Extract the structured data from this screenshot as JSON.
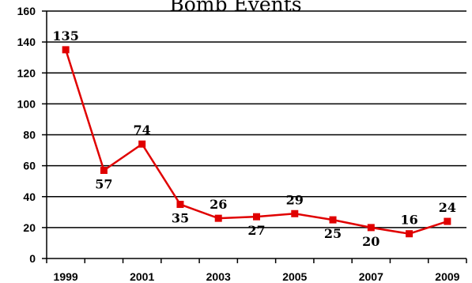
{
  "chart_data": {
    "type": "line",
    "title": "Bomb Events",
    "xlabel": "",
    "ylabel": "",
    "x": [
      1999,
      2000,
      2001,
      2002,
      2003,
      2004,
      2005,
      2006,
      2007,
      2008,
      2009
    ],
    "x_tick_labels": [
      "1999",
      "2001",
      "2003",
      "2005",
      "2007",
      "2009"
    ],
    "y_tick_labels": [
      "0",
      "20",
      "40",
      "60",
      "80",
      "100",
      "120",
      "140",
      "160"
    ],
    "ylim": [
      0,
      160
    ],
    "y_step": 20,
    "grid": "horizontal",
    "legend": "none",
    "series": [
      {
        "values": [
          135,
          57,
          74,
          35,
          26,
          27,
          29,
          25,
          20,
          16,
          24
        ],
        "labels": [
          "135",
          "57",
          "74",
          "35",
          "26",
          "27",
          "29",
          "25",
          "20",
          "16",
          "24"
        ],
        "label_positions": [
          "above",
          "below",
          "above",
          "below",
          "above",
          "below",
          "above",
          "below",
          "below",
          "above",
          "above"
        ],
        "color": "#e00000",
        "marker": "square"
      }
    ]
  }
}
